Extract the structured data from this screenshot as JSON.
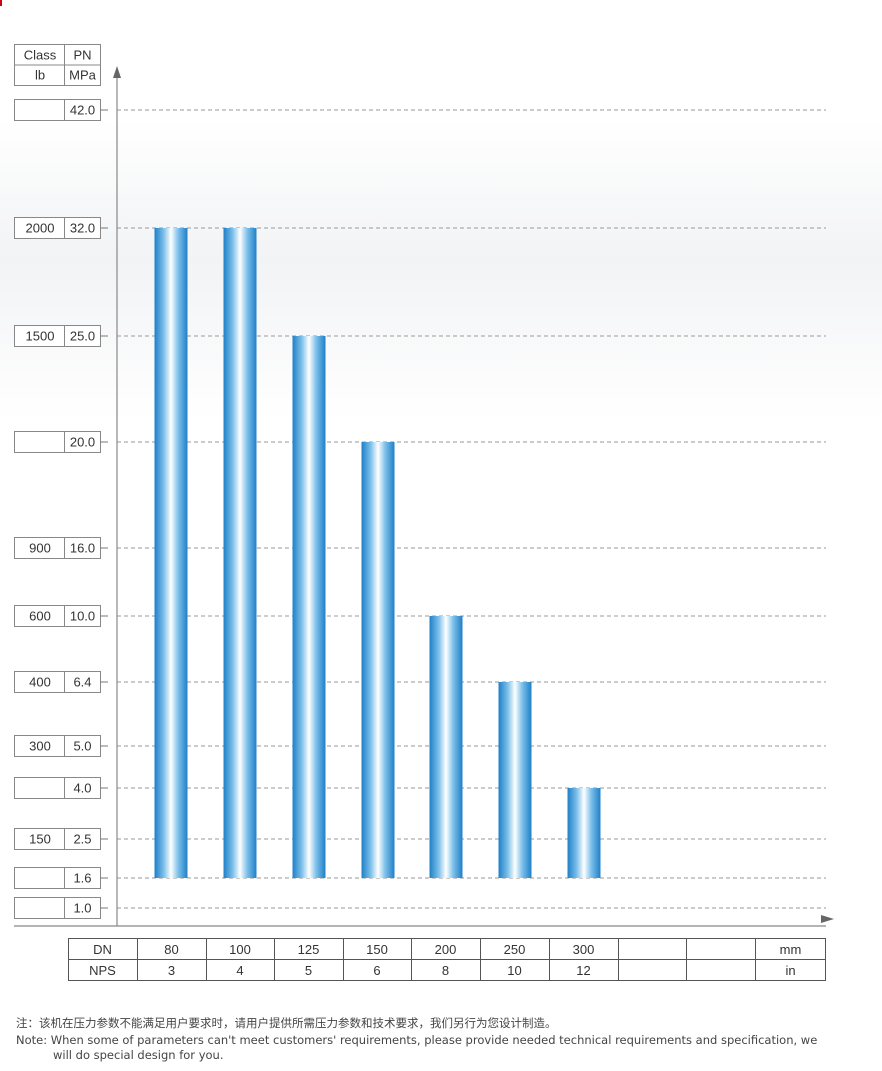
{
  "chart_data": {
    "type": "bar",
    "header": {
      "class_label": "Class",
      "pn_label": "PN",
      "class_unit": "lb",
      "pn_unit": "MPa"
    },
    "y_levels": [
      {
        "pn": "1.0",
        "class": ""
      },
      {
        "pn": "1.6",
        "class": ""
      },
      {
        "pn": "2.5",
        "class": "150"
      },
      {
        "pn": "4.0",
        "class": ""
      },
      {
        "pn": "5.0",
        "class": "300"
      },
      {
        "pn": "6.4",
        "class": "400"
      },
      {
        "pn": "10.0",
        "class": "600"
      },
      {
        "pn": "16.0",
        "class": "900"
      },
      {
        "pn": "20.0",
        "class": ""
      },
      {
        "pn": "25.0",
        "class": "1500"
      },
      {
        "pn": "32.0",
        "class": "2000"
      },
      {
        "pn": "42.0",
        "class": ""
      }
    ],
    "x_table": {
      "dn_label": "DN",
      "nps_label": "NPS",
      "dn_unit": "mm",
      "nps_unit": "in",
      "dn": [
        "80",
        "100",
        "125",
        "150",
        "200",
        "250",
        "300",
        "",
        ""
      ],
      "nps": [
        "3",
        "4",
        "5",
        "6",
        "8",
        "10",
        "12",
        "",
        ""
      ]
    },
    "categories": [
      "80",
      "100",
      "125",
      "150",
      "200",
      "250",
      "300"
    ],
    "values": [
      32.0,
      32.0,
      25.0,
      20.0,
      10.0,
      6.4,
      4.0
    ],
    "base": 1.6,
    "grid": true,
    "bar_color": "#1f7fc6"
  },
  "notes": {
    "cn": "注：该机在压力参数不能满足用户要求时，请用户提供所需压力参数和技术要求，我们另行为您设计制造。",
    "en_line1": "Note: When some of parameters can't meet customers' requirements, please provide needed technical requirements and specification, we",
    "en_line2": "will do special design for you."
  }
}
